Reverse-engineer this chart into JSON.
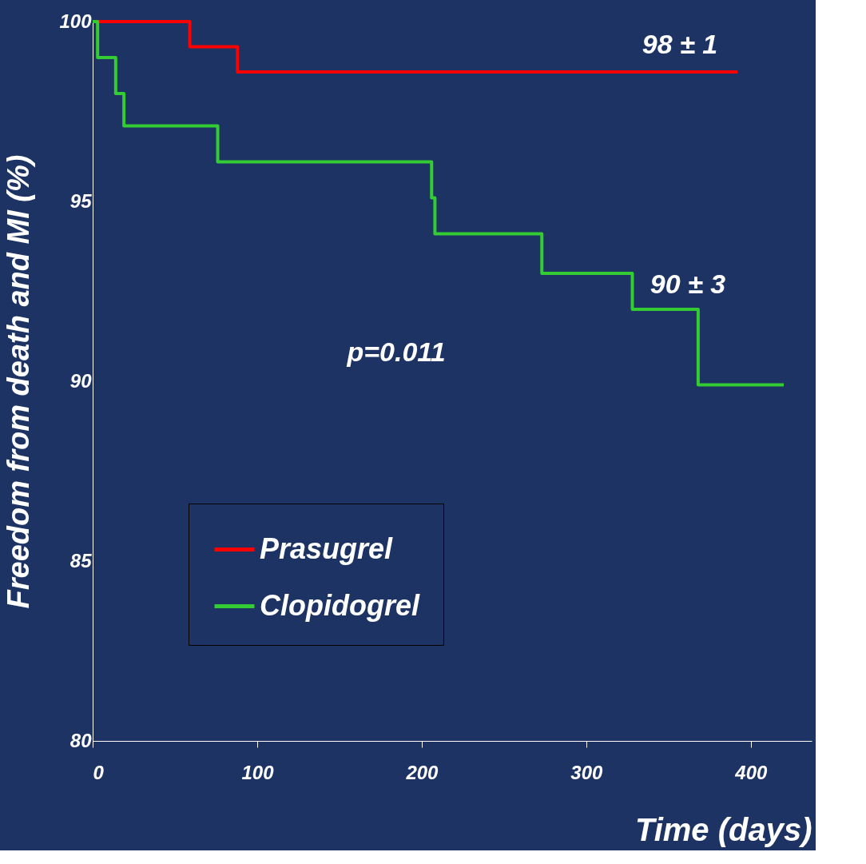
{
  "chart_data": {
    "type": "step",
    "xlabel": "Time (days)",
    "ylabel": "Freedom from death and MI (%)",
    "xlim": [
      0,
      437
    ],
    "ylim": [
      80,
      100
    ],
    "xticks": [
      0,
      100,
      200,
      300,
      400
    ],
    "yticks": [
      80,
      85,
      90,
      95,
      100
    ],
    "series": [
      {
        "name": "Prasugrel",
        "color": "#ff0000",
        "x": [
          0,
          59,
          88,
          392
        ],
        "values": [
          100,
          99.3,
          98.6,
          98.6
        ]
      },
      {
        "name": "Clopidogrel",
        "color": "#33cc33",
        "x": [
          0,
          3,
          14,
          19,
          76,
          206,
          208,
          273,
          328,
          368,
          420
        ],
        "values": [
          100,
          99,
          98,
          97.1,
          96.1,
          95.1,
          94.1,
          93,
          92,
          89.9,
          89.9
        ]
      }
    ],
    "annotations": [
      "98 ± 1",
      "90 ± 3",
      "p=0.011"
    ],
    "grid": false,
    "legend": "bottom left",
    "marker": "none",
    "line_style": "solid"
  }
}
